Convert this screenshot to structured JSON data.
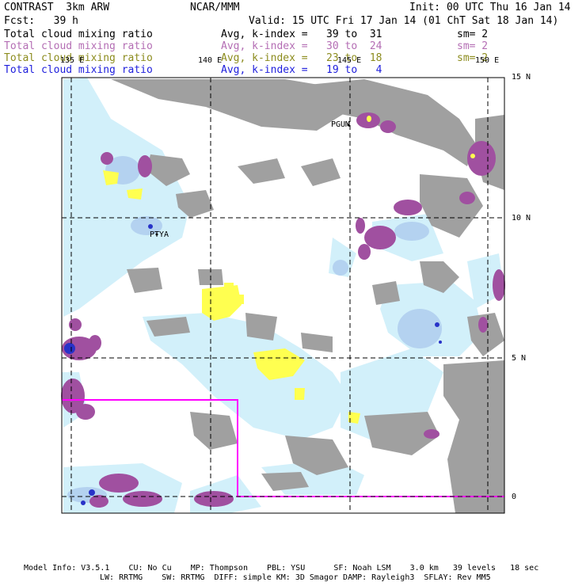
{
  "header": {
    "title": "CONTRAST  3km ARW",
    "center": "NCAR/MMM",
    "init": "Init: 00 UTC Thu 16 Jan 14",
    "fcst": "Fcst:   39 h",
    "valid": "Valid: 15 UTC Fri 17 Jan 14 (01 ChT Sat 18 Jan 14)"
  },
  "legend": [
    {
      "label": "Total cloud mixing ratio",
      "range": "Avg, k-index =   39 to  31",
      "sm": "sm= 2",
      "color": "#000000"
    },
    {
      "label": "Total cloud mixing ratio",
      "range": "Avg, k-index =   30 to  24",
      "sm": "sm= 2",
      "color": "#b46eb4"
    },
    {
      "label": "Total cloud mixing ratio",
      "range": "Avg, k-index =   23 to  18",
      "sm": "sm= 2",
      "color": "#8c8c1e"
    },
    {
      "label": "Total cloud mixing ratio",
      "range": "Avg, k-index =   19 to   4",
      "sm": "",
      "color": "#1e1edc"
    }
  ],
  "axes": {
    "lon_labels": [
      "135 E",
      "140 E",
      "145 E",
      "150 E"
    ],
    "lat_labels": [
      "15 N",
      "10 N",
      "5 N",
      "0"
    ]
  },
  "places": [
    "PGUM",
    "PTYA"
  ],
  "footer": {
    "line1": "Model Info: V3.5.1    CU: No Cu    MP: Thompson    PBL: YSU      SF: Noah LSM    3.0 km   39 levels   18 sec",
    "line2": "LW: RRTMG    SW: RRTMG  DIFF: simple KM: 3D Smagor DAMP: Rayleigh3  SFLAY: Rev MM5"
  },
  "colors": {
    "gray": "#a0a0a0",
    "purple": "#a050a0",
    "yellow": "#ffff50",
    "lightblue": "#d2f0fa",
    "blue": "#b4d2f0",
    "darkblue": "#2832c8",
    "box": "#ff00ff"
  }
}
